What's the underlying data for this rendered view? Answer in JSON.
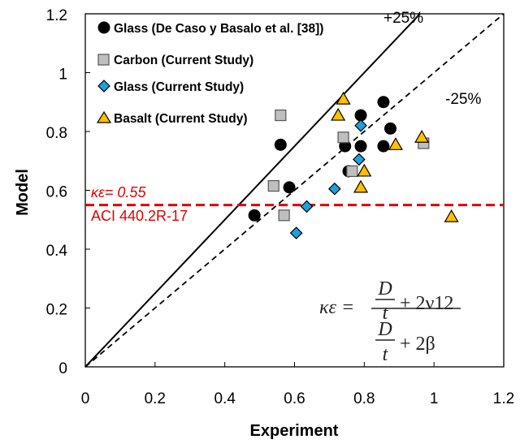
{
  "chart_data": {
    "type": "scatter",
    "xlabel": "Experiment",
    "ylabel": "Model",
    "xlim": [
      0,
      1.2
    ],
    "ylim": [
      0,
      1.2
    ],
    "xticks": [
      "0",
      "0.2",
      "0.4",
      "0.6",
      "0.8",
      "1",
      "1.2"
    ],
    "yticks": [
      "0",
      "0.2",
      "0.4",
      "0.6",
      "0.8",
      "1",
      "1.2"
    ],
    "grid": false,
    "legend_position": "top-left",
    "series": [
      {
        "name": "Glass (De Caso y Basalo et al. [38])",
        "marker": "circle",
        "color": "#000000",
        "points": [
          [
            0.485,
            0.515
          ],
          [
            0.56,
            0.755
          ],
          [
            0.585,
            0.61
          ],
          [
            0.745,
            0.75
          ],
          [
            0.755,
            0.665
          ],
          [
            0.79,
            0.855
          ],
          [
            0.79,
            0.75
          ],
          [
            0.855,
            0.9
          ],
          [
            0.855,
            0.75
          ],
          [
            0.875,
            0.81
          ]
        ]
      },
      {
        "name": "Carbon (Current Study)",
        "marker": "square",
        "color": "#bfbfbf",
        "points": [
          [
            0.54,
            0.615
          ],
          [
            0.56,
            0.855
          ],
          [
            0.57,
            0.515
          ],
          [
            0.74,
            0.78
          ],
          [
            0.765,
            0.665
          ],
          [
            0.97,
            0.76
          ]
        ]
      },
      {
        "name": "Glass (Current Study)",
        "marker": "diamond",
        "color": "#1fa0dc",
        "points": [
          [
            0.605,
            0.455
          ],
          [
            0.635,
            0.545
          ],
          [
            0.715,
            0.605
          ],
          [
            0.785,
            0.705
          ],
          [
            0.79,
            0.82
          ]
        ]
      },
      {
        "name": "Basalt (Current Study)",
        "marker": "triangle",
        "color": "#ffc000",
        "points": [
          [
            0.725,
            0.855
          ],
          [
            0.74,
            0.91
          ],
          [
            0.79,
            0.61
          ],
          [
            0.8,
            0.665
          ],
          [
            0.89,
            0.755
          ],
          [
            0.965,
            0.78
          ],
          [
            1.05,
            0.51
          ]
        ]
      }
    ],
    "reference_lines": {
      "equality_label": "+25%",
      "lower_label": "-25%",
      "horizontal_value": 0.55,
      "horizontal_label": "κε= 0.55",
      "horizontal_source": "ACI 440.2R-17",
      "horizontal_color": "#e00000"
    },
    "equation": {
      "lhs": "κε =",
      "num_frac_top": "D",
      "num_frac_bottom": "t",
      "num_rest": "+ 2ν12",
      "den_frac_top": "D",
      "den_frac_bottom": "t",
      "den_rest": "+ 2β"
    }
  }
}
